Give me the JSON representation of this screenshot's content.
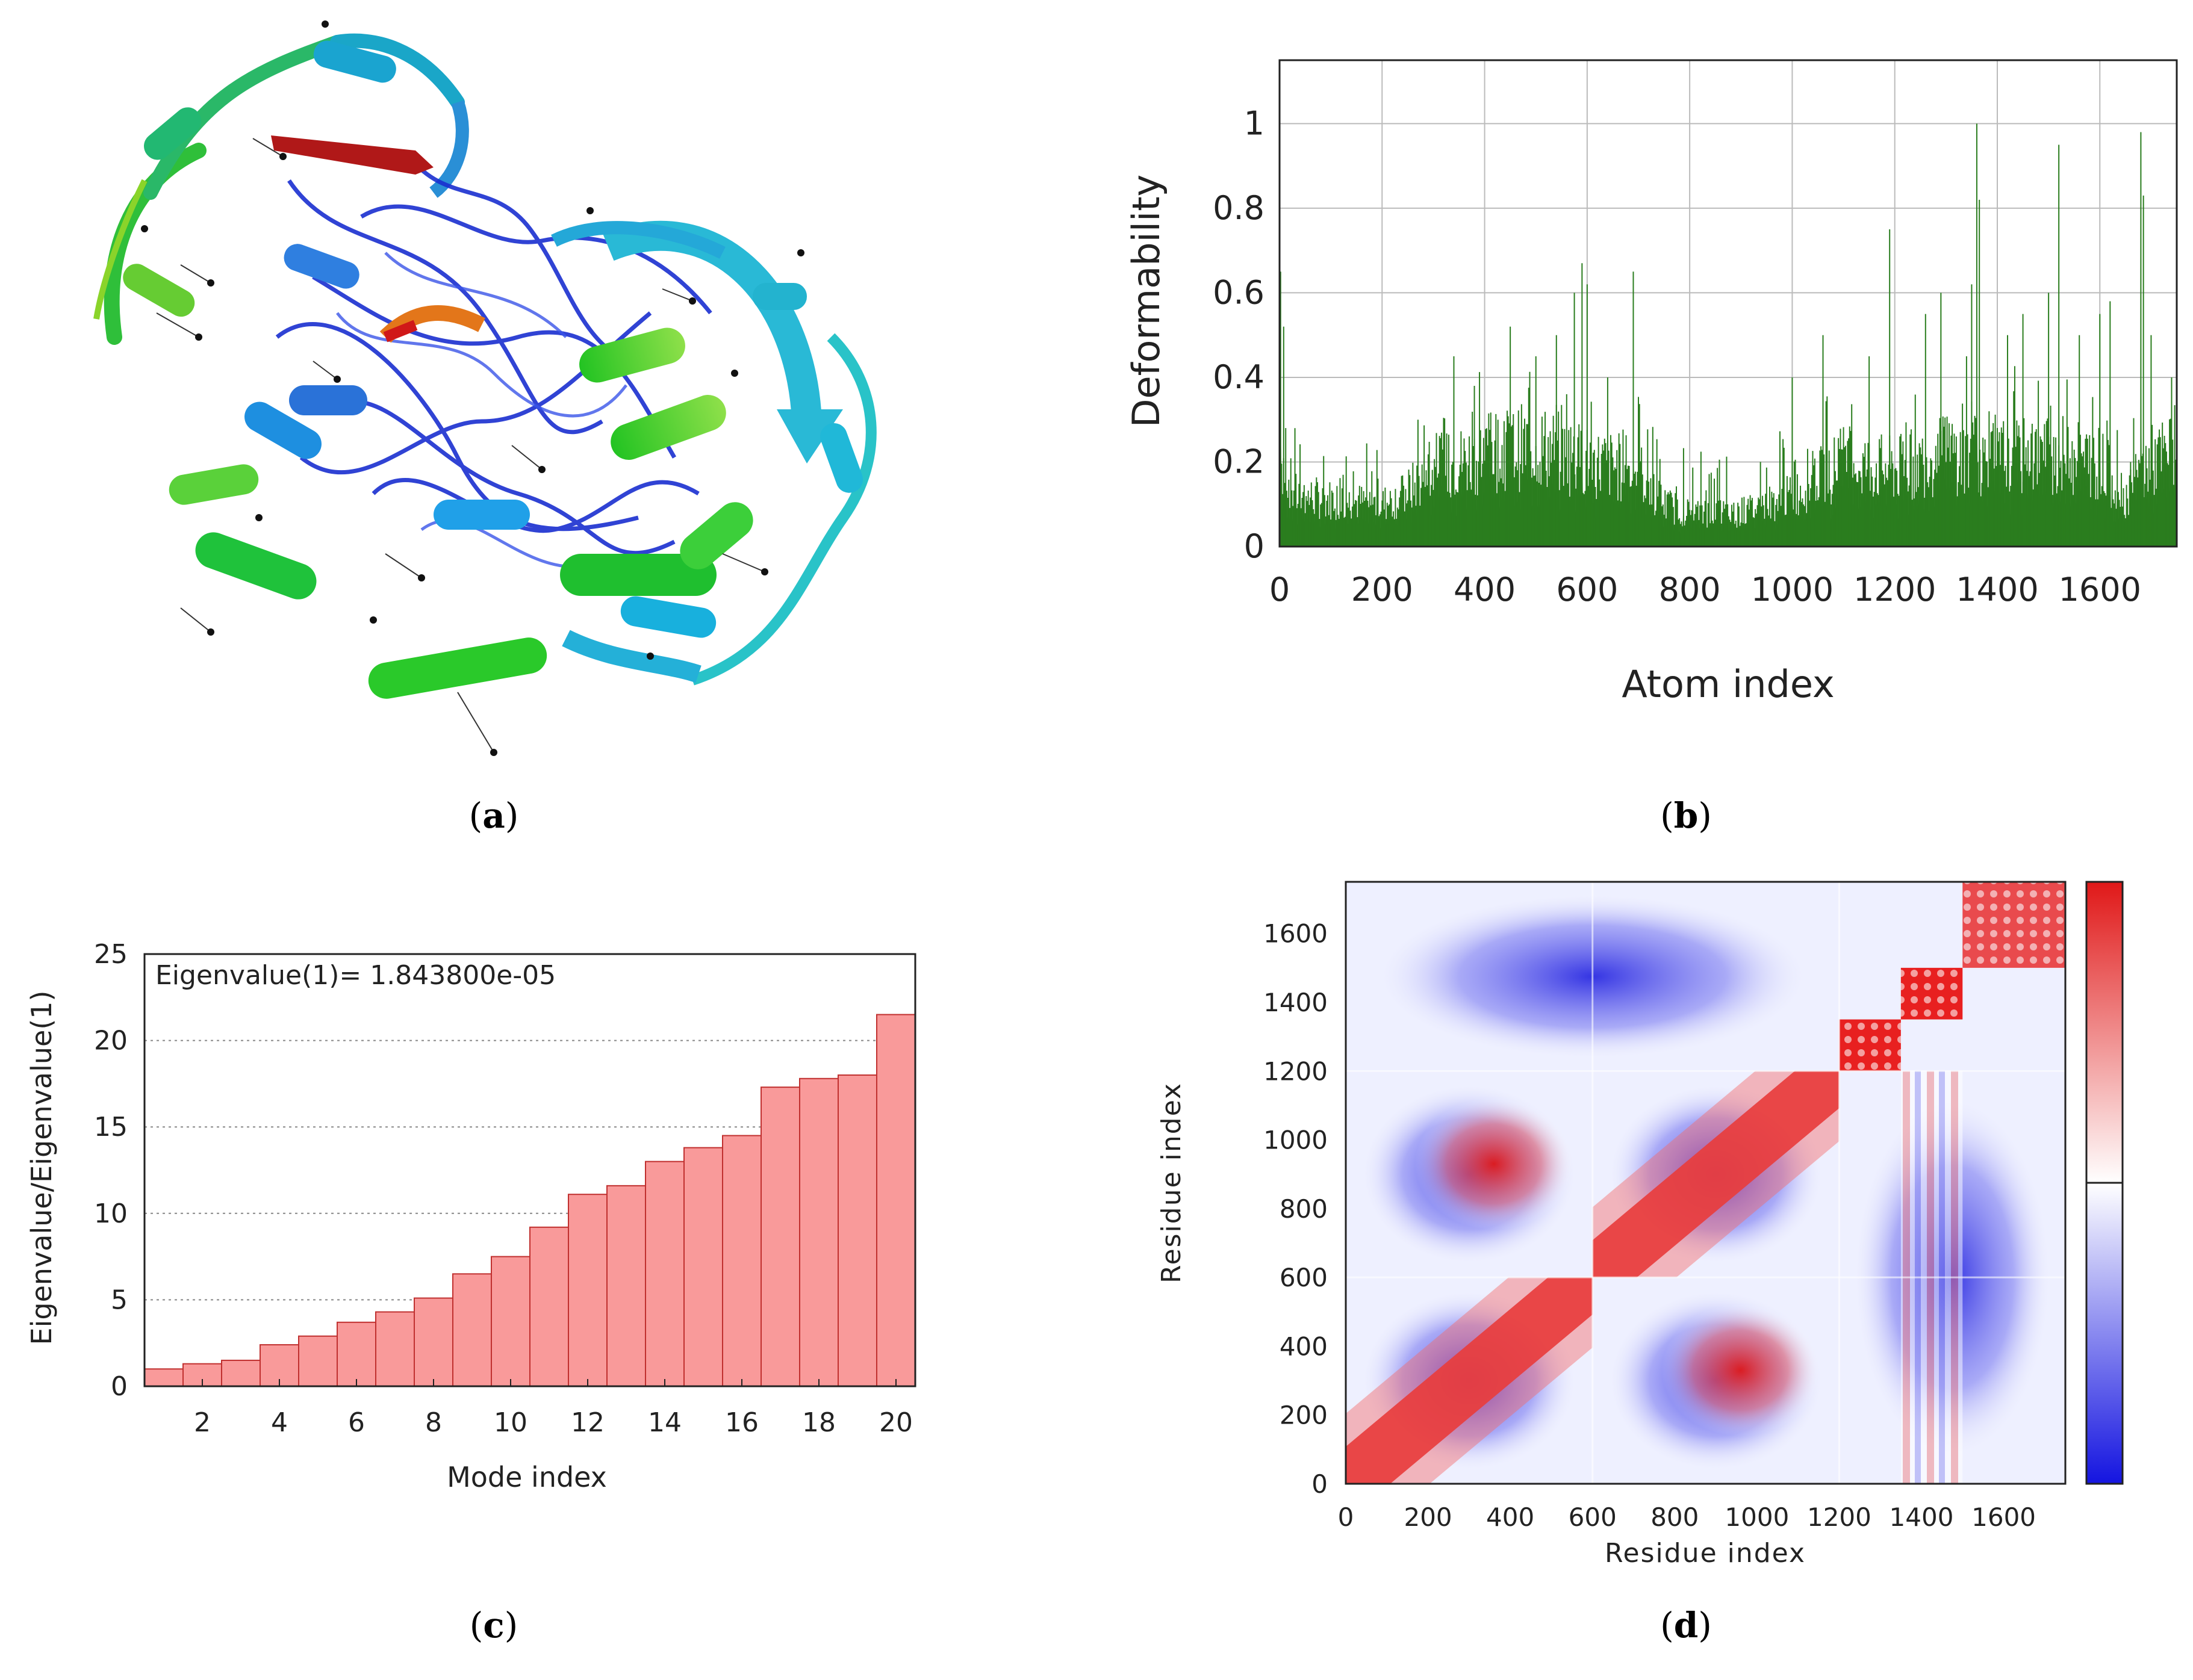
{
  "panels": {
    "a": {
      "letter": "a"
    },
    "b": {
      "letter": "b"
    },
    "c": {
      "letter": "c"
    },
    "d": {
      "letter": "d"
    }
  },
  "colors": {
    "deform_green": "#2a7d1e",
    "bar_fill": "#f99a9a",
    "bar_edge": "#c0302f",
    "pos": "#e01818",
    "neg": "#1414e0"
  },
  "chart_data": [
    {
      "panel": "b",
      "type": "area",
      "title": "",
      "xlabel": "Atom index",
      "ylabel": "Deformability",
      "xlim": [
        0,
        1750
      ],
      "ylim": [
        0,
        1.15
      ],
      "xticks": [
        "0",
        "200",
        "400",
        "600",
        "800",
        "1000",
        "1200",
        "1400",
        "1600"
      ],
      "yticks": [
        "0",
        "0.2",
        "0.4",
        "0.6",
        "0.8",
        "1"
      ],
      "grid": true,
      "baseline_profile": [
        [
          0,
          0.22
        ],
        [
          30,
          0.12
        ],
        [
          200,
          0.1
        ],
        [
          240,
          0.12
        ],
        [
          300,
          0.18
        ],
        [
          400,
          0.22
        ],
        [
          500,
          0.24
        ],
        [
          600,
          0.2
        ],
        [
          700,
          0.18
        ],
        [
          750,
          0.1
        ],
        [
          800,
          0.08
        ],
        [
          900,
          0.08
        ],
        [
          1000,
          0.12
        ],
        [
          1100,
          0.2
        ],
        [
          1200,
          0.18
        ],
        [
          1300,
          0.22
        ],
        [
          1400,
          0.2
        ],
        [
          1500,
          0.22
        ],
        [
          1600,
          0.2
        ],
        [
          1650,
          0.12
        ],
        [
          1700,
          0.2
        ],
        [
          1750,
          0.22
        ]
      ],
      "peaks": [
        [
          2,
          0.65
        ],
        [
          8,
          0.52
        ],
        [
          30,
          0.28
        ],
        [
          270,
          0.3
        ],
        [
          340,
          0.45
        ],
        [
          380,
          0.38
        ],
        [
          450,
          0.52
        ],
        [
          500,
          0.45
        ],
        [
          540,
          0.5
        ],
        [
          575,
          0.6
        ],
        [
          590,
          0.67
        ],
        [
          600,
          0.62
        ],
        [
          640,
          0.4
        ],
        [
          690,
          0.65
        ],
        [
          1000,
          0.4
        ],
        [
          1060,
          0.5
        ],
        [
          1150,
          0.45
        ],
        [
          1190,
          0.75
        ],
        [
          1260,
          0.55
        ],
        [
          1290,
          0.6
        ],
        [
          1340,
          0.45
        ],
        [
          1350,
          0.62
        ],
        [
          1360,
          1.0
        ],
        [
          1365,
          0.82
        ],
        [
          1420,
          0.5
        ],
        [
          1450,
          0.55
        ],
        [
          1500,
          0.6
        ],
        [
          1520,
          0.95
        ],
        [
          1560,
          0.5
        ],
        [
          1600,
          0.55
        ],
        [
          1620,
          0.58
        ],
        [
          1660,
          0.2
        ],
        [
          1680,
          0.98
        ],
        [
          1685,
          0.83
        ],
        [
          1700,
          0.5
        ],
        [
          1740,
          0.4
        ]
      ]
    },
    {
      "panel": "c",
      "type": "bar",
      "title": "",
      "annotation": "Eigenvalue(1)= 1.843800e-05",
      "xlabel": "Mode index",
      "ylabel": "Eigenvalue/Eigenvalue(1)",
      "ylim": [
        0,
        25
      ],
      "xticks": [
        "2",
        "4",
        "6",
        "8",
        "10",
        "12",
        "14",
        "16",
        "18",
        "20"
      ],
      "yticks": [
        "0",
        "5",
        "10",
        "15",
        "20",
        "25"
      ],
      "grid": "horizontal-dotted",
      "categories": [
        1,
        2,
        3,
        4,
        5,
        6,
        7,
        8,
        9,
        10,
        11,
        12,
        13,
        14,
        15,
        16,
        17,
        18,
        19,
        20
      ],
      "values": [
        1.0,
        1.3,
        1.5,
        2.4,
        2.9,
        3.7,
        4.3,
        5.1,
        6.5,
        7.5,
        9.2,
        11.1,
        11.6,
        13.0,
        13.8,
        14.5,
        17.3,
        17.8,
        18.0,
        21.5
      ]
    },
    {
      "panel": "d",
      "type": "heatmap",
      "title": "",
      "xlabel": "Residue index",
      "ylabel": "Residue index",
      "xlim": [
        0,
        1750
      ],
      "ylim": [
        0,
        1750
      ],
      "xticks": [
        "0",
        "200",
        "400",
        "600",
        "800",
        "1000",
        "1200",
        "1400",
        "1600"
      ],
      "yticks": [
        "0",
        "200",
        "400",
        "600",
        "800",
        "1000",
        "1200",
        "1400",
        "1600"
      ],
      "colorbar": {
        "low": "blue",
        "mid": "white",
        "high": "red"
      },
      "blocks": [
        {
          "x": [
            0,
            600
          ],
          "y": [
            0,
            600
          ],
          "pattern": "diagonal",
          "value": 1
        },
        {
          "x": [
            600,
            1200
          ],
          "y": [
            600,
            1200
          ],
          "pattern": "diagonal",
          "value": 1
        },
        {
          "x": [
            1200,
            1350
          ],
          "y": [
            1200,
            1350
          ],
          "pattern": "full",
          "value": 1
        },
        {
          "x": [
            1350,
            1500
          ],
          "y": [
            1350,
            1500
          ],
          "pattern": "full",
          "value": 1
        },
        {
          "x": [
            1500,
            1750
          ],
          "y": [
            1500,
            1750
          ],
          "pattern": "full",
          "value": 0.8
        },
        {
          "x": [
            600,
            1200
          ],
          "y": [
            0,
            600
          ],
          "pattern": "blob",
          "value": 0.7
        },
        {
          "x": [
            0,
            600
          ],
          "y": [
            600,
            1200
          ],
          "pattern": "blob",
          "value": 0.7
        },
        {
          "x": [
            1350,
            1500
          ],
          "y": [
            600,
            1200
          ],
          "pattern": "stripes",
          "value": 0.5
        },
        {
          "x": [
            1350,
            1500
          ],
          "y": [
            0,
            600
          ],
          "pattern": "stripes",
          "value": 0.5
        }
      ]
    }
  ]
}
